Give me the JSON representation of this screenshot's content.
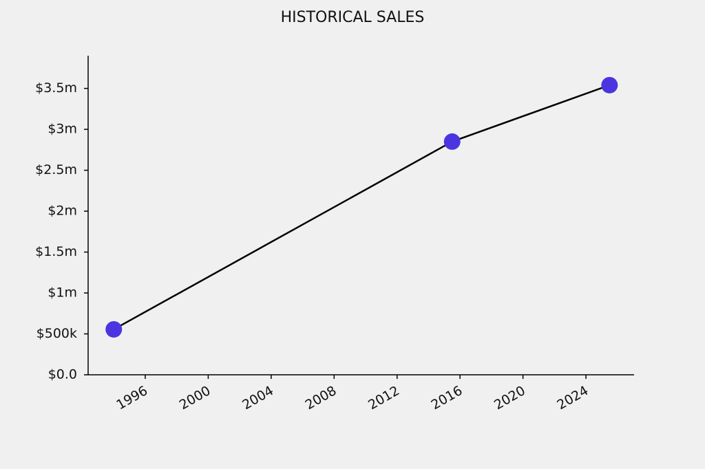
{
  "chart_data": {
    "type": "line",
    "title": "HISTORICAL SALES",
    "x": [
      1994,
      2015.5,
      2025.5
    ],
    "series": [
      {
        "values": [
          555000,
          2850000,
          3540000
        ],
        "color": "#000000",
        "marker_color": "#4b35e0"
      }
    ],
    "xlim": [
      1992.37,
      2027.06
    ],
    "xticks": [
      1996,
      2000,
      2004,
      2008,
      2012,
      2016,
      2020,
      2024
    ],
    "ylim": [
      0,
      3900000
    ],
    "yticks": [
      {
        "value": 0,
        "label": "$0.0"
      },
      {
        "value": 500000,
        "label": "$500k"
      },
      {
        "value": 1000000,
        "label": "$1m"
      },
      {
        "value": 1500000,
        "label": "$1.5m"
      },
      {
        "value": 2000000,
        "label": "$2m"
      },
      {
        "value": 2500000,
        "label": "$2.5m"
      },
      {
        "value": 3000000,
        "label": "$3m"
      },
      {
        "value": 3500000,
        "label": "$3.5m"
      }
    ],
    "grid": false
  }
}
